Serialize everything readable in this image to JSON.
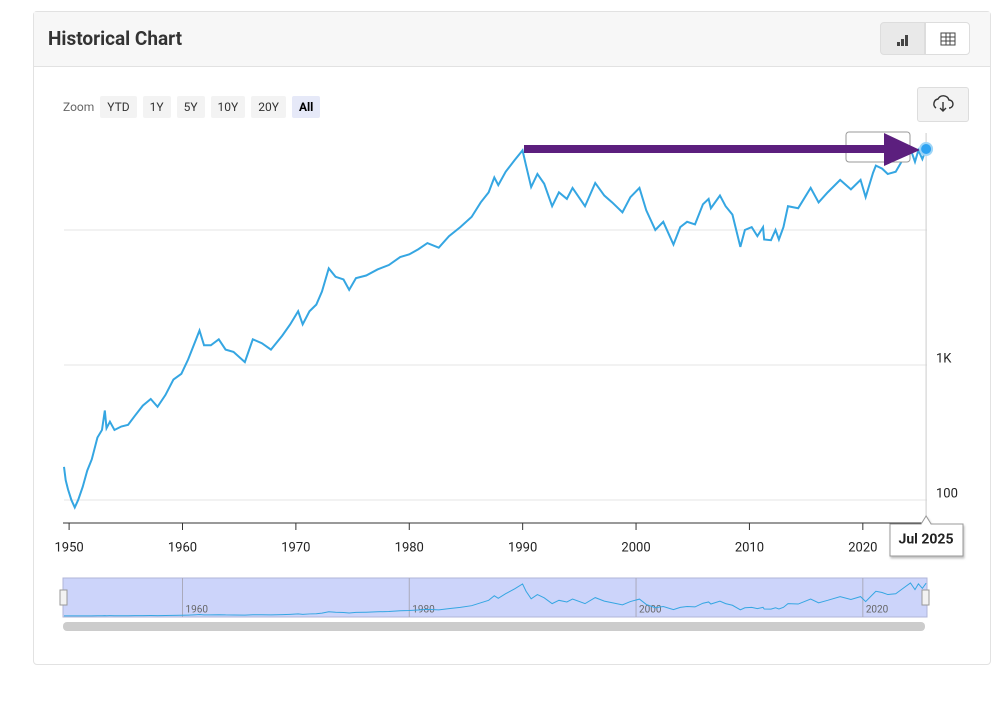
{
  "chart_data": {
    "type": "line",
    "title": "Historical Chart",
    "color": "#35a6e2",
    "log_scale": true,
    "zoom": {
      "label": "Zoom",
      "buttons": [
        "YTD",
        "1Y",
        "5Y",
        "10Y",
        "20Y",
        "All"
      ],
      "active": "All"
    },
    "crosshair_label": "Jul 2025",
    "xlim": [
      1949.55,
      2025.66
    ],
    "xticks": [
      1950,
      1960,
      1970,
      1980,
      1990,
      2000,
      2010,
      2020
    ],
    "ylim": [
      67.5,
      55050
    ],
    "yticks": [
      100,
      {
        "value": 1000,
        "label": "1K"
      }
    ],
    "gridlines": [
      100,
      1000,
      10000
    ],
    "navigator_xticks": [
      1960,
      1980,
      2000,
      2020
    ],
    "x": [
      1949.55,
      1949.7,
      1949.9,
      1950.2,
      1950.5,
      1950.8,
      1951.2,
      1951.6,
      1952.0,
      1952.5,
      1952.9,
      1953.15,
      1953.3,
      1953.6,
      1954.0,
      1954.6,
      1955.2,
      1955.8,
      1956.5,
      1957.2,
      1957.8,
      1958.5,
      1959.2,
      1959.9,
      1960.5,
      1961.2,
      1961.5,
      1961.9,
      1962.5,
      1963.2,
      1963.8,
      1964.5,
      1965.5,
      1966.2,
      1967.0,
      1967.8,
      1968.8,
      1969.5,
      1970.2,
      1970.6,
      1971.2,
      1971.8,
      1972.3,
      1972.9,
      1973.5,
      1974.2,
      1974.7,
      1975.3,
      1976.2,
      1977.2,
      1978.2,
      1979.2,
      1980.0,
      1980.8,
      1981.6,
      1982.6,
      1983.5,
      1984.5,
      1985.5,
      1986.3,
      1987.0,
      1987.5,
      1987.85,
      1988.5,
      1989.3,
      1989.99,
      1990.3,
      1990.75,
      1991.3,
      1991.9,
      1992.6,
      1993.2,
      1993.9,
      1994.4,
      1995.5,
      1996.4,
      1997.2,
      1997.9,
      1998.8,
      1999.5,
      2000.3,
      2000.9,
      2001.7,
      2002.4,
      2003.3,
      2003.9,
      2004.5,
      2005.2,
      2005.9,
      2006.4,
      2006.6,
      2007.4,
      2007.9,
      2008.5,
      2009.2,
      2009.6,
      2010.2,
      2010.7,
      2011.2,
      2011.3,
      2011.9,
      2012.3,
      2012.6,
      2013.0,
      2013.4,
      2014.3,
      2015.4,
      2016.1,
      2016.9,
      2018.0,
      2018.95,
      2019.8,
      2020.25,
      2020.9,
      2021.15,
      2021.7,
      2022.2,
      2022.9,
      2023.5,
      2024.2,
      2024.6,
      2024.9,
      2025.25,
      2025.58
    ],
    "values": [
      176,
      140,
      120,
      100,
      88,
      100,
      125,
      165,
      200,
      290,
      330,
      460,
      340,
      380,
      330,
      350,
      360,
      420,
      500,
      560,
      490,
      600,
      780,
      860,
      1100,
      1550,
      1800,
      1400,
      1400,
      1550,
      1300,
      1250,
      1050,
      1550,
      1450,
      1300,
      1650,
      2000,
      2500,
      2000,
      2500,
      2800,
      3500,
      5200,
      4500,
      4300,
      3600,
      4400,
      4600,
      5100,
      5500,
      6300,
      6600,
      7200,
      8000,
      7400,
      9000,
      10500,
      12500,
      16000,
      19000,
      24500,
      21500,
      27000,
      33000,
      38900,
      30000,
      20800,
      26000,
      22000,
      15000,
      19000,
      17000,
      20500,
      15000,
      22300,
      18000,
      16000,
      13500,
      17500,
      20500,
      14000,
      10000,
      11500,
      7800,
      10500,
      11500,
      11000,
      15500,
      17000,
      14500,
      18000,
      15000,
      13000,
      7500,
      10000,
      10500,
      9000,
      10500,
      8500,
      8400,
      10000,
      8500,
      10500,
      15000,
      14500,
      20500,
      16000,
      19000,
      23500,
      20000,
      23500,
      17500,
      26500,
      30000,
      28500,
      26000,
      27000,
      33000,
      40000,
      32000,
      39000,
      33500,
      39800
    ]
  }
}
